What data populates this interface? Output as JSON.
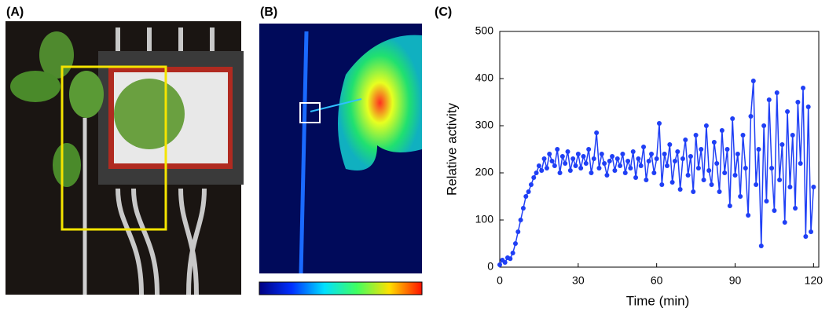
{
  "panel_labels": [
    "(A)",
    "(B)",
    "(C)"
  ],
  "chart_data": {
    "type": "line",
    "xlabel": "Time (min)",
    "ylabel": "Relative activity",
    "x": [
      0,
      1,
      2,
      3,
      4,
      5,
      6,
      7,
      8,
      9,
      10,
      11,
      12,
      13,
      14,
      15,
      16,
      17,
      18,
      19,
      20,
      21,
      22,
      23,
      24,
      25,
      26,
      27,
      28,
      29,
      30,
      31,
      32,
      33,
      34,
      35,
      36,
      37,
      38,
      39,
      40,
      41,
      42,
      43,
      44,
      45,
      46,
      47,
      48,
      49,
      50,
      51,
      52,
      53,
      54,
      55,
      56,
      57,
      58,
      59,
      60,
      61,
      62,
      63,
      64,
      65,
      66,
      67,
      68,
      69,
      70,
      71,
      72,
      73,
      74,
      75,
      76,
      77,
      78,
      79,
      80,
      81,
      82,
      83,
      84,
      85,
      86,
      87,
      88,
      89,
      90,
      91,
      92,
      93,
      94,
      95,
      96,
      97,
      98,
      99,
      100,
      101,
      102,
      103,
      104,
      105,
      106,
      107,
      108,
      109,
      110,
      111,
      112,
      113,
      114,
      115,
      116,
      117,
      118,
      119,
      120
    ],
    "series": [
      {
        "color": "#1f3ff5",
        "values": [
          5,
          15,
          10,
          20,
          18,
          30,
          50,
          75,
          100,
          125,
          150,
          160,
          175,
          190,
          200,
          215,
          205,
          230,
          210,
          240,
          225,
          215,
          250,
          200,
          235,
          220,
          245,
          205,
          230,
          215,
          240,
          210,
          235,
          220,
          250,
          200,
          230,
          285,
          210,
          240,
          220,
          195,
          225,
          235,
          205,
          230,
          215,
          240,
          200,
          225,
          210,
          245,
          190,
          230,
          215,
          255,
          185,
          225,
          240,
          200,
          230,
          305,
          175,
          240,
          215,
          260,
          180,
          225,
          245,
          165,
          230,
          270,
          195,
          235,
          160,
          280,
          210,
          250,
          185,
          300,
          205,
          175,
          265,
          220,
          160,
          290,
          200,
          250,
          130,
          315,
          195,
          240,
          150,
          280,
          210,
          110,
          320,
          395,
          175,
          250,
          45,
          300,
          140,
          355,
          210,
          120,
          370,
          185,
          260,
          95,
          330,
          170,
          280,
          125,
          350,
          220,
          380,
          65,
          340,
          75,
          170
        ]
      }
    ],
    "xlim": [
      0,
      122
    ],
    "ylim": [
      0,
      500
    ],
    "xticks": [
      0,
      30,
      60,
      90,
      120
    ],
    "yticks": [
      0,
      100,
      200,
      300,
      400,
      500
    ]
  }
}
